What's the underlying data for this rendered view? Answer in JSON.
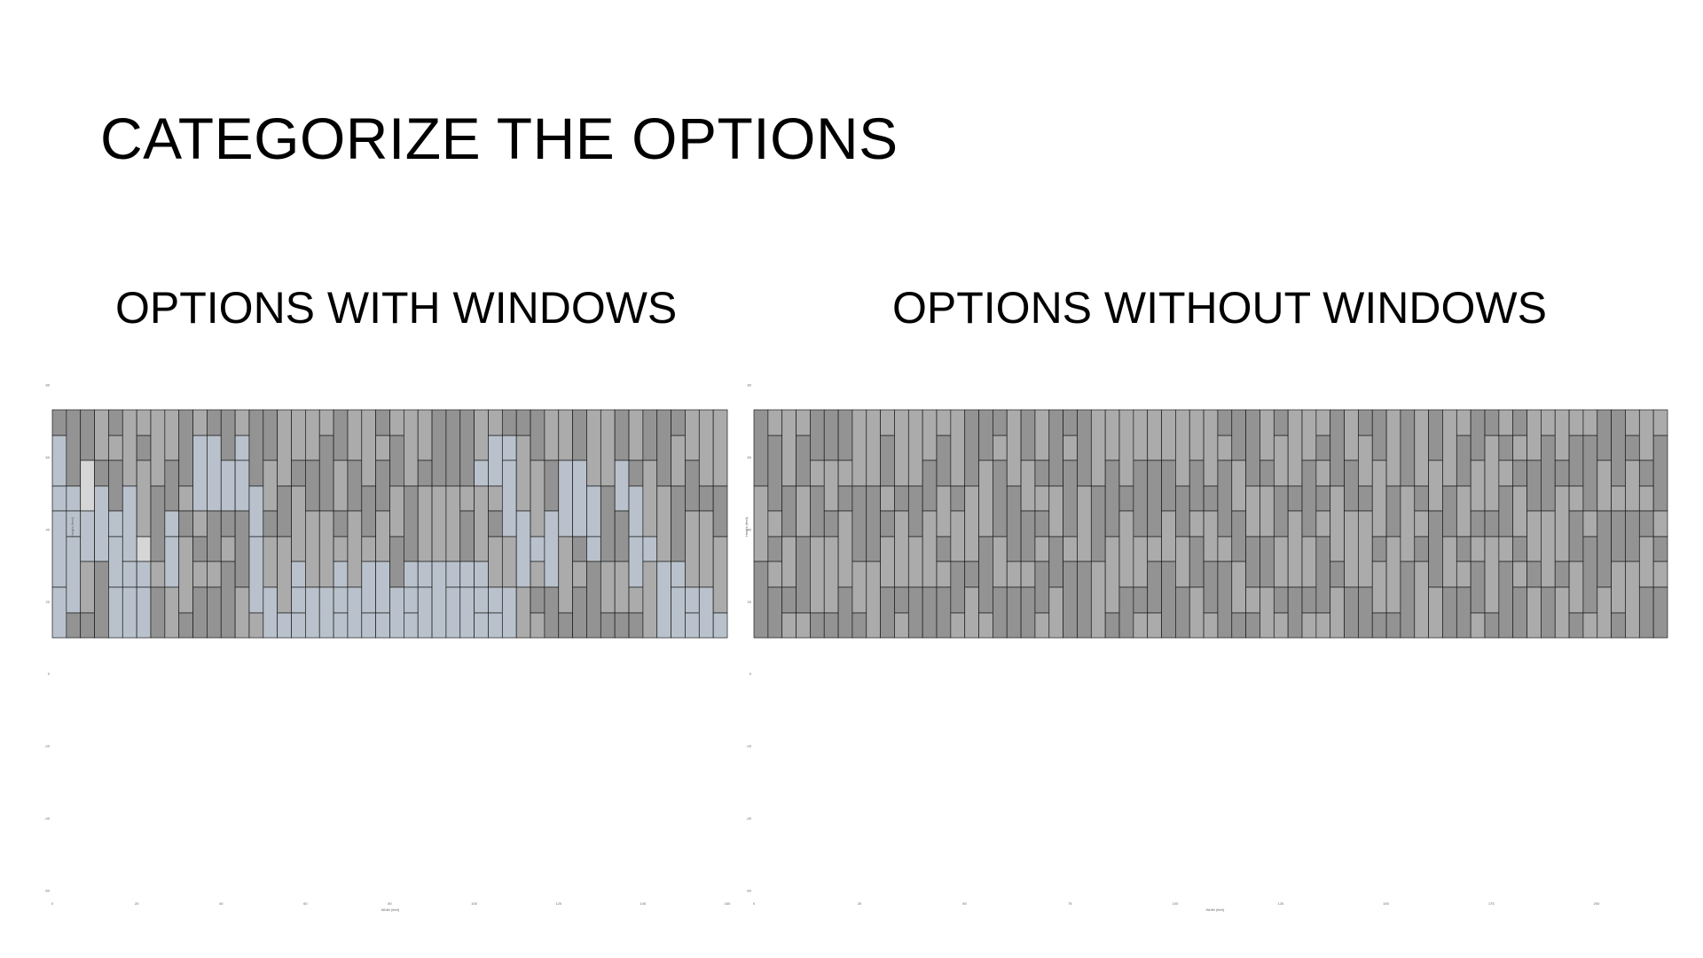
{
  "slide": {
    "title": "CATEGORIZE THE OPTIONS",
    "left_heading": "OPTIONS WITH WINDOWS",
    "right_heading": "OPTIONS WITHOUT WINDOWS"
  },
  "colors": {
    "panel_light": "#ababab",
    "panel_dark": "#939393",
    "window_panel": "#b9c2cc",
    "window_light": "#d6d6d6",
    "grid_line": "#1a1a1a"
  },
  "chart_data": [
    {
      "type": "diagram",
      "name": "wall-layout-with-windows",
      "y_ticks": [
        "80",
        "60",
        "40",
        "20",
        "0",
        "-20",
        "-40",
        "-60"
      ],
      "x_ticks": [
        "0",
        "20",
        "40",
        "60",
        "80",
        "100",
        "120",
        "140",
        "160"
      ],
      "xlabel": "Width (feet)",
      "ylabel": "Height (feet)",
      "columns": 48
    },
    {
      "type": "diagram",
      "name": "wall-layout-without-windows",
      "y_ticks": [
        "80",
        "60",
        "40",
        "20",
        "0",
        "-20",
        "-40",
        "-60"
      ],
      "x_ticks": [
        "0",
        "25",
        "50",
        "75",
        "100",
        "125",
        "150",
        "175",
        "200"
      ],
      "xlabel": "Width (feet)",
      "ylabel": "Height (feet)",
      "columns": 65
    }
  ]
}
